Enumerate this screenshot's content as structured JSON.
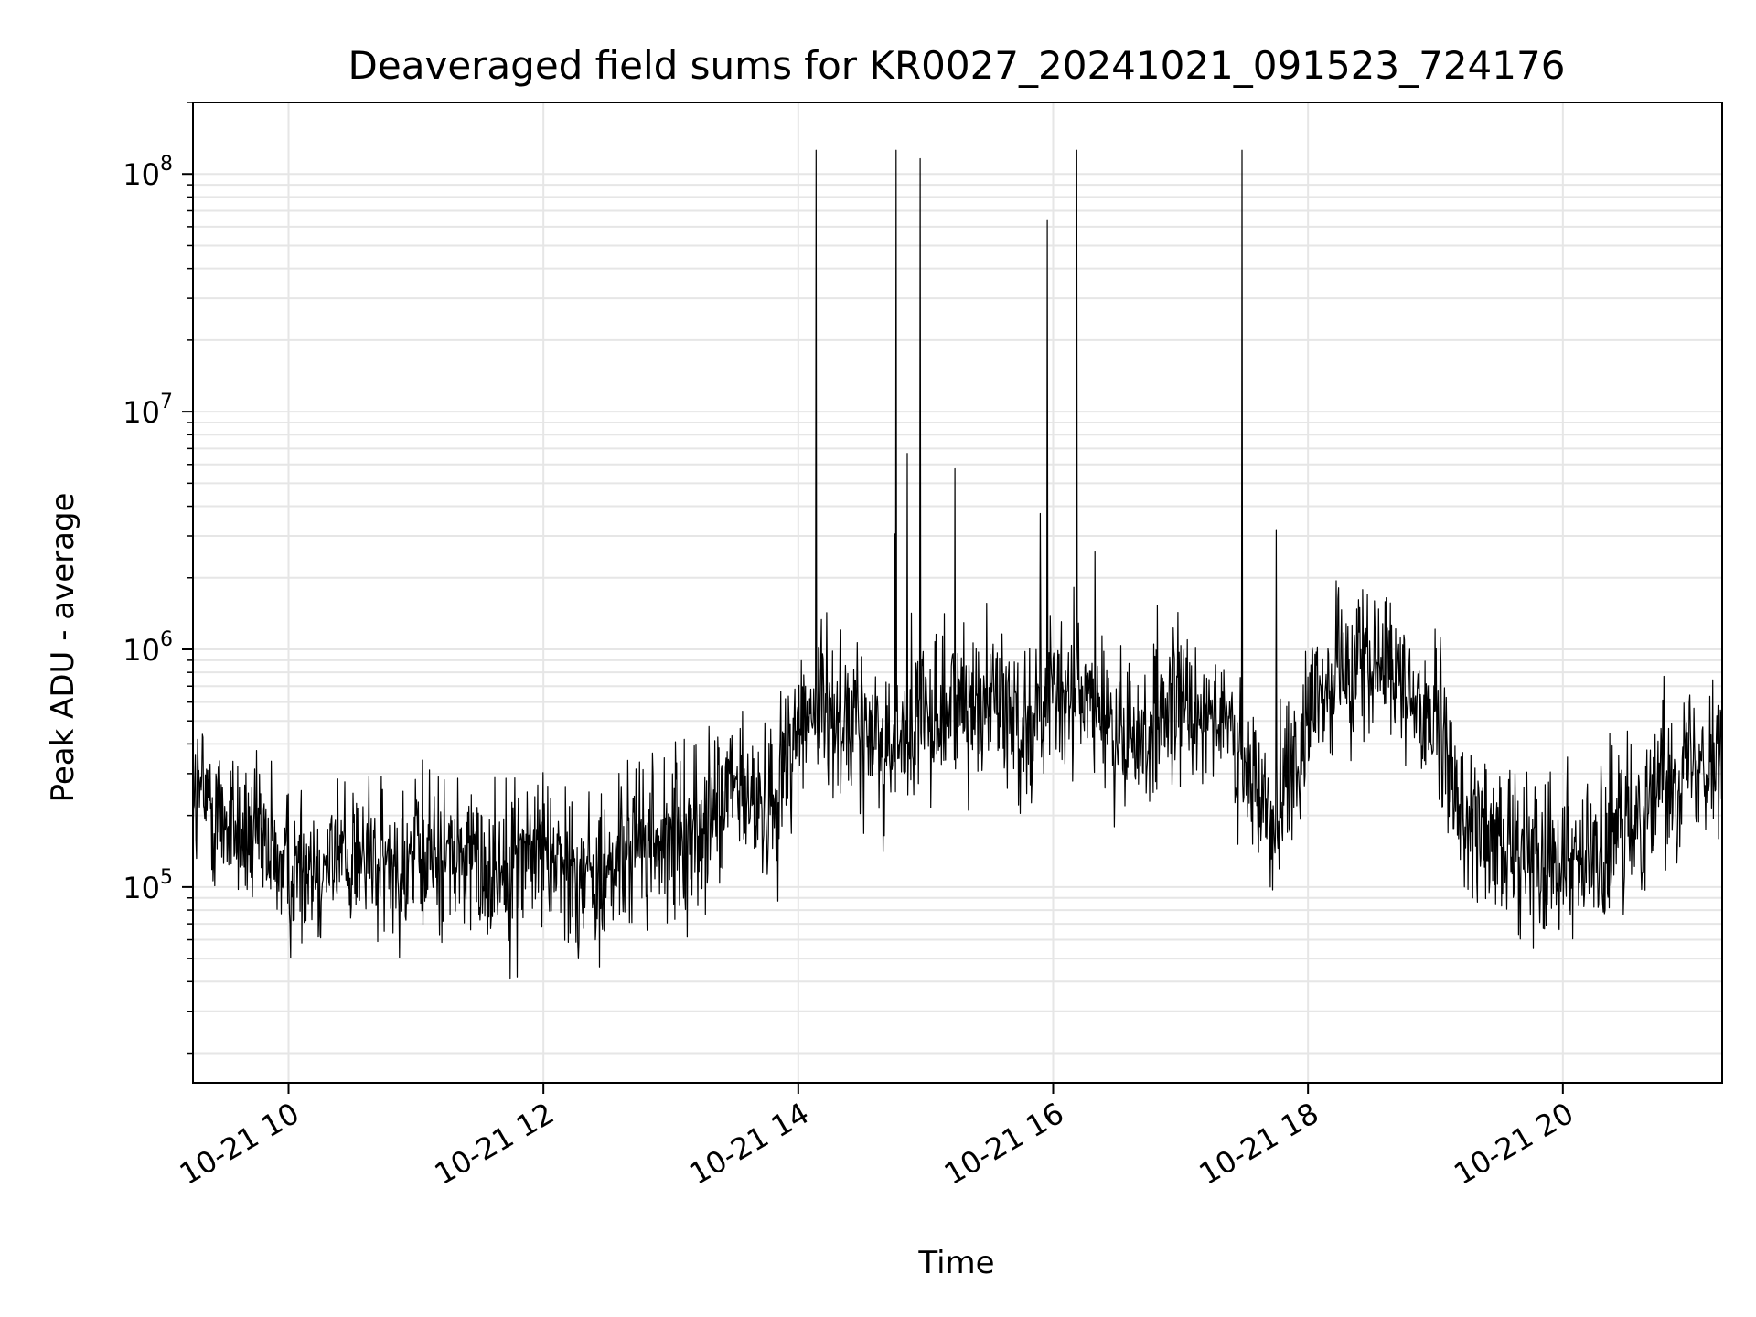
{
  "chart_data": {
    "type": "line",
    "title": "Deaveraged field sums for KR0027_20241021_091523_724176",
    "xlabel": "Time",
    "ylabel": "Peak ADU - average",
    "yscale": "log",
    "ylim": [
      15000,
      200000000
    ],
    "xlim": [
      "2024-10-21 09:15",
      "2024-10-21 21:15"
    ],
    "x_ticks": [
      "10-21 10",
      "10-21 12",
      "10-21 14",
      "10-21 16",
      "10-21 18",
      "10-21 20"
    ],
    "y_ticks": [
      {
        "base": "10",
        "exp": "5"
      },
      {
        "base": "10",
        "exp": "6"
      },
      {
        "base": "10",
        "exp": "7"
      },
      {
        "base": "10",
        "exp": "8"
      }
    ],
    "grid": true,
    "line_color": "#000000",
    "series": [
      {
        "x": [
          "2024-10-21 09:15",
          "2024-10-21 09:30",
          "2024-10-21 09:45",
          "2024-10-21 10:00",
          "2024-10-21 10:15",
          "2024-10-21 10:30",
          "2024-10-21 10:45",
          "2024-10-21 11:00",
          "2024-10-21 11:15",
          "2024-10-21 11:30",
          "2024-10-21 11:45",
          "2024-10-21 12:00",
          "2024-10-21 12:15",
          "2024-10-21 12:30",
          "2024-10-21 12:45",
          "2024-10-21 13:00",
          "2024-10-21 13:15",
          "2024-10-21 13:30",
          "2024-10-21 13:45",
          "2024-10-21 14:00",
          "2024-10-21 14:15",
          "2024-10-21 14:30",
          "2024-10-21 14:45",
          "2024-10-21 15:00",
          "2024-10-21 15:15",
          "2024-10-21 15:30",
          "2024-10-21 15:45",
          "2024-10-21 16:00",
          "2024-10-21 16:15",
          "2024-10-21 16:30",
          "2024-10-21 16:45",
          "2024-10-21 17:00",
          "2024-10-21 17:15",
          "2024-10-21 17:30",
          "2024-10-21 17:45",
          "2024-10-21 18:00",
          "2024-10-21 18:15",
          "2024-10-21 18:30",
          "2024-10-21 18:45",
          "2024-10-21 19:00",
          "2024-10-21 19:15",
          "2024-10-21 19:30",
          "2024-10-21 19:45",
          "2024-10-21 20:00",
          "2024-10-21 20:15",
          "2024-10-21 20:30",
          "2024-10-21 20:45",
          "2024-10-21 21:00",
          "2024-10-21 21:15"
        ],
        "values": [
          250000,
          200000,
          150000,
          120000,
          130000,
          140000,
          120000,
          130000,
          140000,
          120000,
          130000,
          150000,
          120000,
          110000,
          160000,
          150000,
          180000,
          250000,
          200000,
          500000,
          600000,
          450000,
          400000,
          500000,
          600000,
          650000,
          500000,
          600000,
          700000,
          400000,
          450000,
          550000,
          600000,
          300000,
          200000,
          450000,
          900000,
          800000,
          700000,
          500000,
          180000,
          150000,
          140000,
          150000,
          120000,
          180000,
          280000,
          350000,
          400000
        ]
      }
    ]
  }
}
